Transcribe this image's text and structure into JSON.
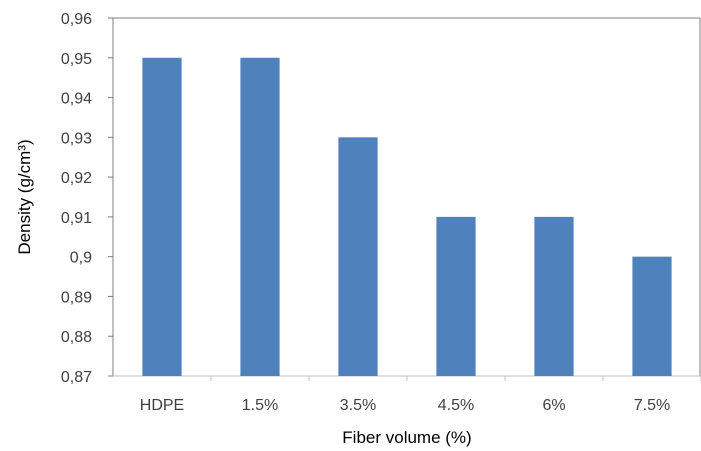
{
  "chart_data": {
    "type": "bar",
    "title": "",
    "xlabel": "Fiber volume (%)",
    "ylabel": "Density (g/cm³)",
    "categories": [
      "HDPE",
      "1.5%",
      "3.5%",
      "4.5%",
      "6%",
      "7.5%"
    ],
    "values": [
      0.95,
      0.95,
      0.93,
      0.91,
      0.91,
      0.9
    ],
    "ylim": [
      0.87,
      0.96
    ],
    "yticks": [
      "0.87",
      "0.88",
      "0.89",
      "0.9",
      "0.91",
      "0.92",
      "0.93",
      "0.94",
      "0.95",
      "0.96"
    ],
    "ytick_labels": [
      "0,87",
      "0,88",
      "0,89",
      "0,9",
      "0,91",
      "0,92",
      "0,93",
      "0,94",
      "0,95",
      "0,96"
    ],
    "bar_color": "#4F81BD",
    "grid": false,
    "legend": "none"
  }
}
